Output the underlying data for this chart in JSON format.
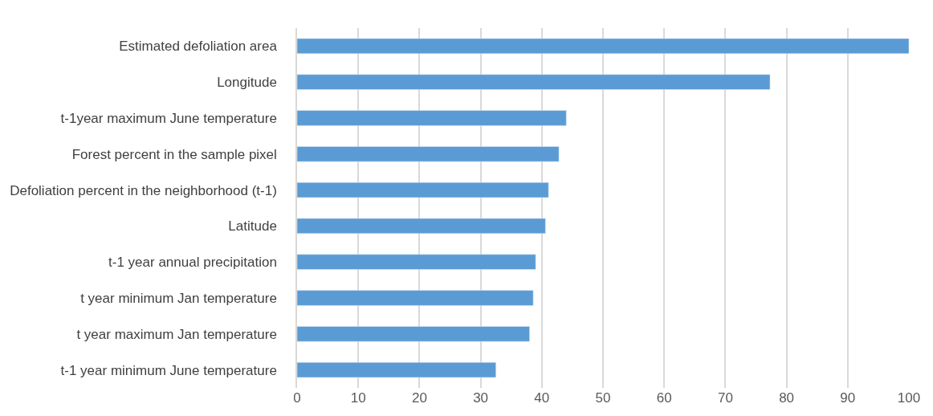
{
  "chart_data": {
    "type": "bar",
    "orientation": "horizontal",
    "categories": [
      "Estimated defoliation area",
      "Longitude",
      "t-1year maximum June temperature",
      "Forest percent in the sample pixel",
      "Defoliation percent in the neighborhood (t-1)",
      "Latitude",
      "t-1 year annual precipitation",
      "t year minimum Jan temperature",
      "t year maximum Jan temperature",
      "t-1 year minimum June temperature"
    ],
    "values": [
      100,
      77.3,
      44.0,
      42.8,
      41.1,
      40.6,
      39.0,
      38.6,
      38.0,
      32.5
    ],
    "color": "#5b9bd5",
    "xlim": [
      0,
      100
    ],
    "xticks": [
      0,
      10,
      20,
      30,
      40,
      50,
      60,
      70,
      80,
      90,
      100
    ],
    "grid": "x"
  }
}
